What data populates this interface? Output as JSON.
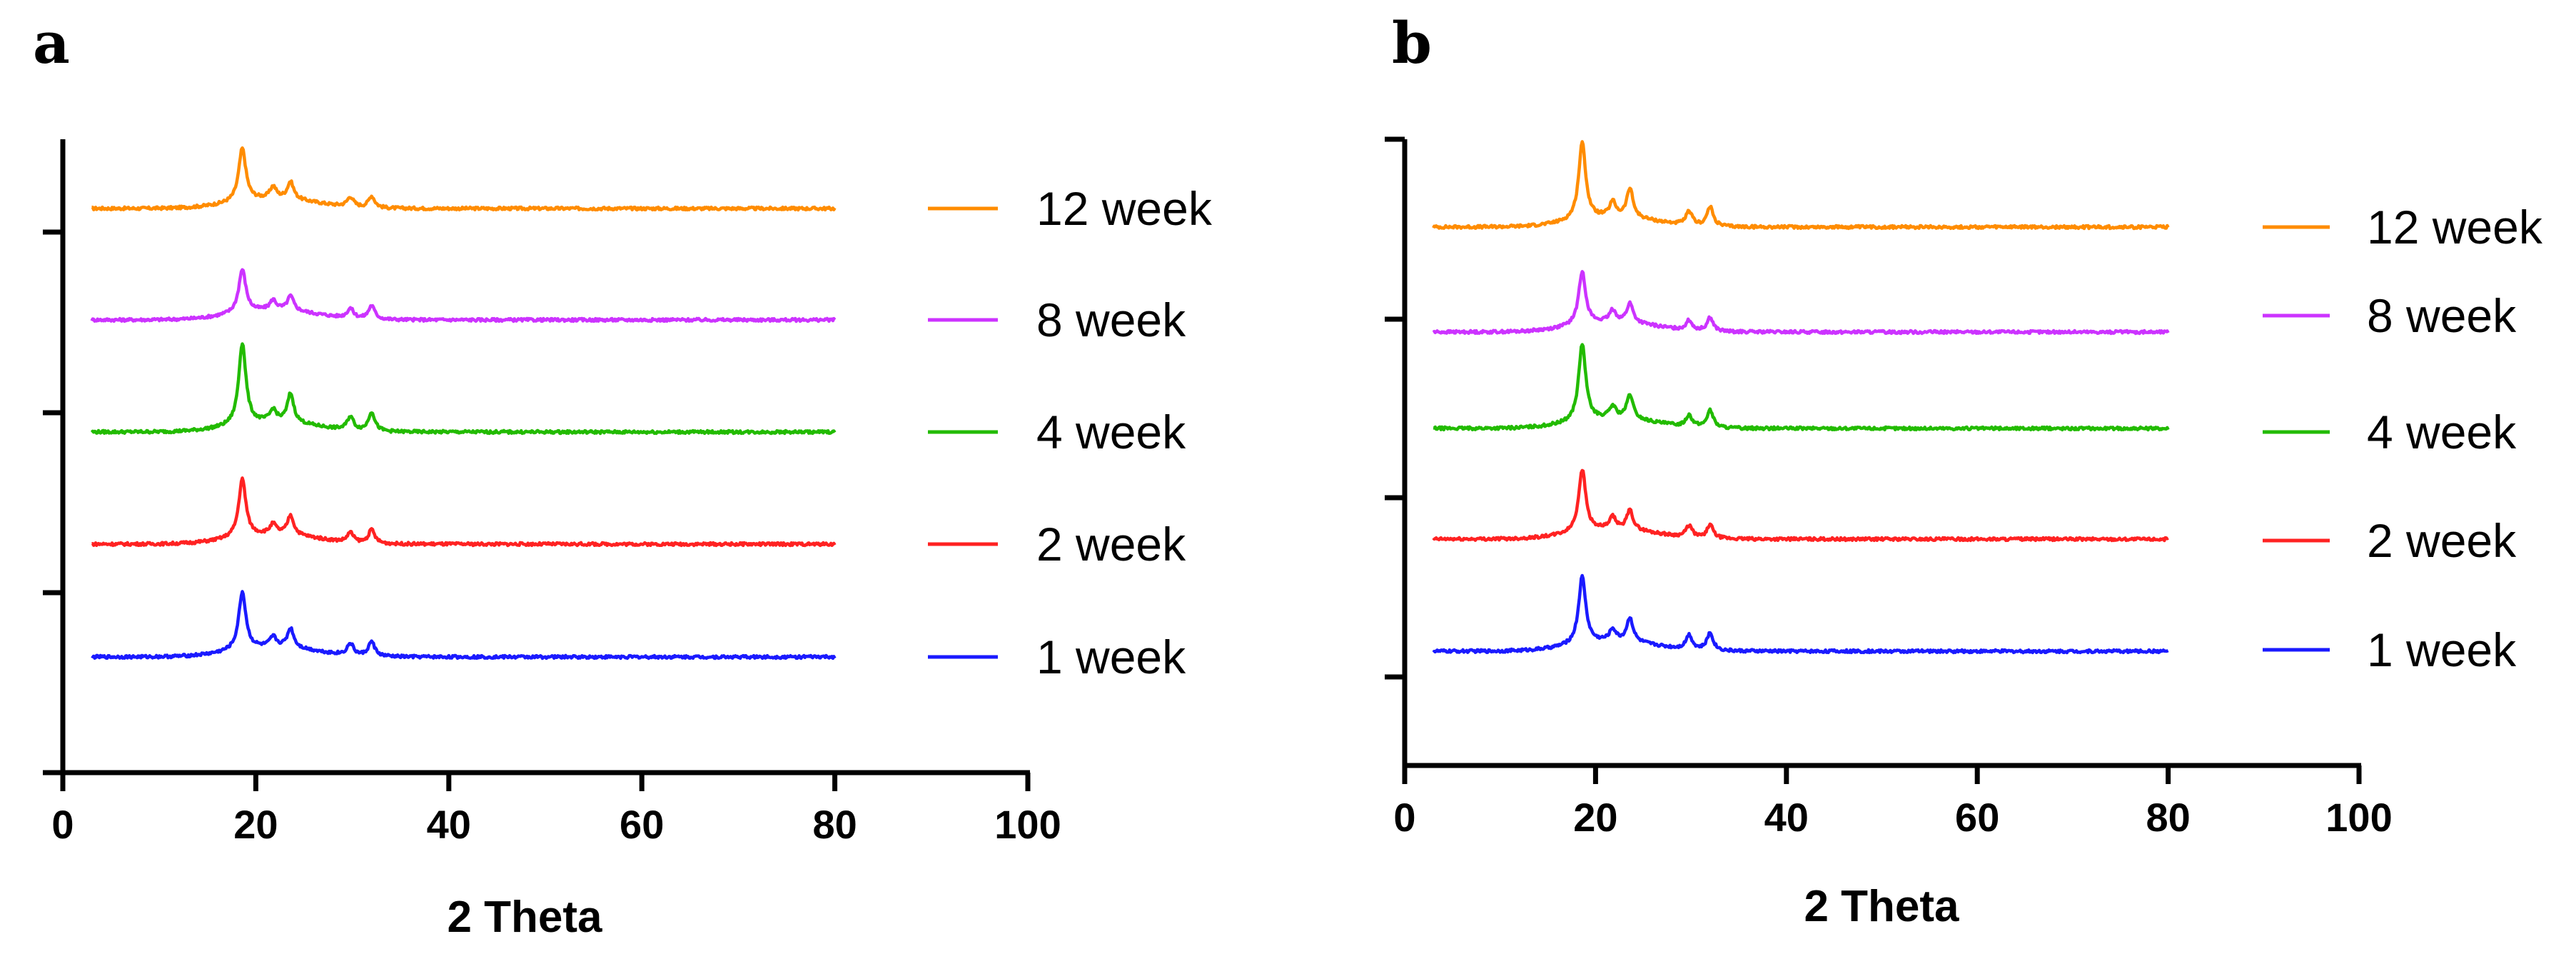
{
  "chart_data": [
    {
      "type": "line",
      "panel": "a",
      "title": "",
      "xlabel": "2 Theta",
      "ylabel": "",
      "xlim": [
        0,
        100
      ],
      "xticks": [
        "0",
        "20",
        "40",
        "60",
        "80",
        "100"
      ],
      "x_range": [
        3,
        80
      ],
      "legend_position": "right",
      "grid": false,
      "series": [
        {
          "name": "12 week",
          "color": "#ff8c00",
          "peaks": [
            [
              18.6,
              0.55
            ],
            [
              21.8,
              0.12
            ],
            [
              23.6,
              0.18
            ],
            [
              29.8,
              0.1
            ],
            [
              32.0,
              0.12
            ]
          ]
        },
        {
          "name": "8 week",
          "color": "#cc33ff",
          "peaks": [
            [
              18.6,
              0.45
            ],
            [
              21.8,
              0.1
            ],
            [
              23.6,
              0.15
            ],
            [
              29.8,
              0.1
            ],
            [
              32.0,
              0.14
            ]
          ]
        },
        {
          "name": "4 week",
          "color": "#22bb00",
          "peaks": [
            [
              18.6,
              0.85
            ],
            [
              21.8,
              0.12
            ],
            [
              23.6,
              0.3
            ],
            [
              29.8,
              0.14
            ],
            [
              32.0,
              0.2
            ]
          ]
        },
        {
          "name": "2 week",
          "color": "#ff2222",
          "peaks": [
            [
              18.6,
              0.6
            ],
            [
              21.8,
              0.1
            ],
            [
              23.6,
              0.2
            ],
            [
              29.8,
              0.1
            ],
            [
              32.0,
              0.14
            ]
          ]
        },
        {
          "name": "1 week",
          "color": "#1a1aff",
          "peaks": [
            [
              18.6,
              0.6
            ],
            [
              21.8,
              0.1
            ],
            [
              23.6,
              0.2
            ],
            [
              29.8,
              0.12
            ],
            [
              32.0,
              0.15
            ]
          ]
        }
      ]
    },
    {
      "type": "line",
      "panel": "b",
      "title": "",
      "xlabel": "2 Theta",
      "ylabel": "",
      "xlim": [
        0,
        100
      ],
      "xticks": [
        "0",
        "20",
        "40",
        "60",
        "80",
        "100"
      ],
      "x_range": [
        3,
        80
      ],
      "legend_position": "right",
      "grid": false,
      "series": [
        {
          "name": "12 week",
          "color": "#ff8c00",
          "peaks": [
            [
              18.6,
              0.8
            ],
            [
              21.8,
              0.15
            ],
            [
              23.6,
              0.3
            ],
            [
              29.8,
              0.14
            ],
            [
              32.0,
              0.2
            ]
          ]
        },
        {
          "name": "8 week",
          "color": "#cc33ff",
          "peaks": [
            [
              18.6,
              0.55
            ],
            [
              21.8,
              0.12
            ],
            [
              23.6,
              0.2
            ],
            [
              29.8,
              0.1
            ],
            [
              32.0,
              0.14
            ]
          ]
        },
        {
          "name": "4 week",
          "color": "#22bb00",
          "peaks": [
            [
              18.6,
              0.8
            ],
            [
              21.8,
              0.12
            ],
            [
              23.6,
              0.25
            ],
            [
              29.8,
              0.12
            ],
            [
              32.0,
              0.18
            ]
          ]
        },
        {
          "name": "2 week",
          "color": "#ff2222",
          "peaks": [
            [
              18.6,
              0.65
            ],
            [
              21.8,
              0.12
            ],
            [
              23.6,
              0.2
            ],
            [
              29.8,
              0.12
            ],
            [
              32.0,
              0.14
            ]
          ]
        },
        {
          "name": "1 week",
          "color": "#1a1aff",
          "peaks": [
            [
              18.6,
              0.7
            ],
            [
              21.8,
              0.12
            ],
            [
              23.6,
              0.25
            ],
            [
              29.8,
              0.15
            ],
            [
              32.0,
              0.18
            ]
          ]
        }
      ]
    }
  ]
}
